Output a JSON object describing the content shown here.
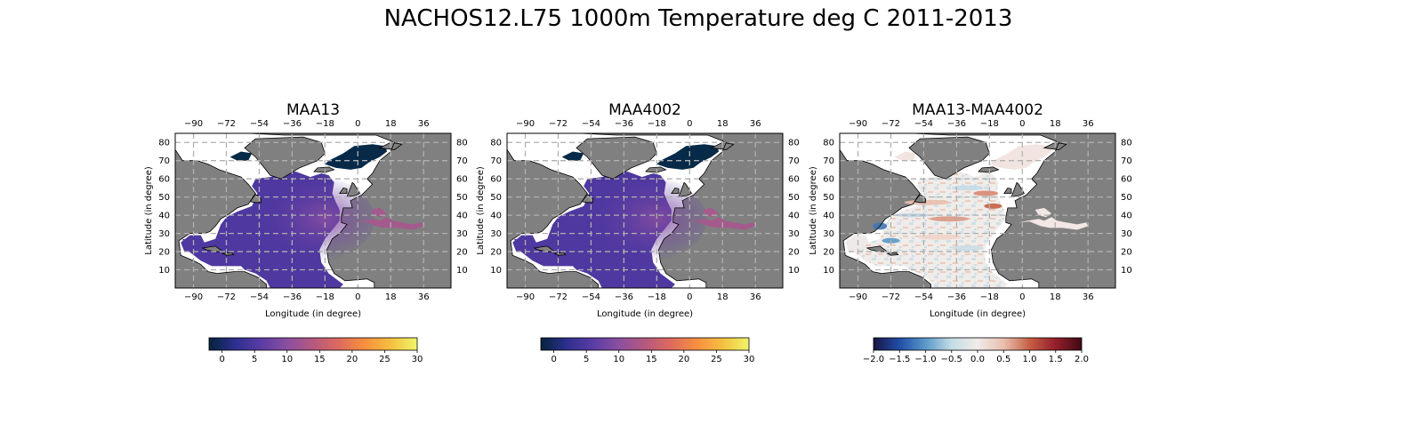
{
  "figure": {
    "title": "NACHOS12.L75 1000m Temperature deg C 2011-2013"
  },
  "axes_text": {
    "xlabel": "Longitude (in degree)",
    "ylabel": "Latitude (in degree)",
    "lon_ticks": [
      "−90",
      "−72",
      "−54",
      "−36",
      "−18",
      "0",
      "18",
      "36"
    ],
    "lat_ticks": [
      "80",
      "70",
      "60",
      "50",
      "40",
      "30",
      "20",
      "10"
    ]
  },
  "panels": [
    {
      "title": "MAA13",
      "field": "temperature",
      "colorbar": {
        "colormap": "thermal",
        "ticks": [
          "0",
          "5",
          "10",
          "15",
          "20",
          "25",
          "30"
        ],
        "range": [
          -2,
          30
        ]
      }
    },
    {
      "title": "MAA4002",
      "field": "temperature",
      "colorbar": {
        "colormap": "thermal",
        "ticks": [
          "0",
          "5",
          "10",
          "15",
          "20",
          "25",
          "30"
        ],
        "range": [
          -2,
          30
        ]
      }
    },
    {
      "title": "MAA13-MAA4002",
      "field": "difference",
      "colorbar": {
        "colormap": "balance",
        "ticks": [
          "−2.0",
          "−1.5",
          "−1.0",
          "−0.5",
          "0.0",
          "0.5",
          "1.0",
          "1.5",
          "2.0"
        ],
        "range": [
          -2,
          2
        ]
      }
    }
  ],
  "colors": {
    "land": "#808080",
    "grid": "#b0b0b0",
    "thermal": [
      "#04233b",
      "#2d2f8f",
      "#5a3ca6",
      "#8b4fa0",
      "#b5587f",
      "#de6a5d",
      "#f7903f",
      "#f5c040",
      "#eef66a"
    ],
    "balance": [
      "#1a1442",
      "#1f4ea8",
      "#5a99c8",
      "#c4dce6",
      "#f0ece9",
      "#e8bfae",
      "#c65f43",
      "#961e2b",
      "#3d0a14"
    ]
  }
}
